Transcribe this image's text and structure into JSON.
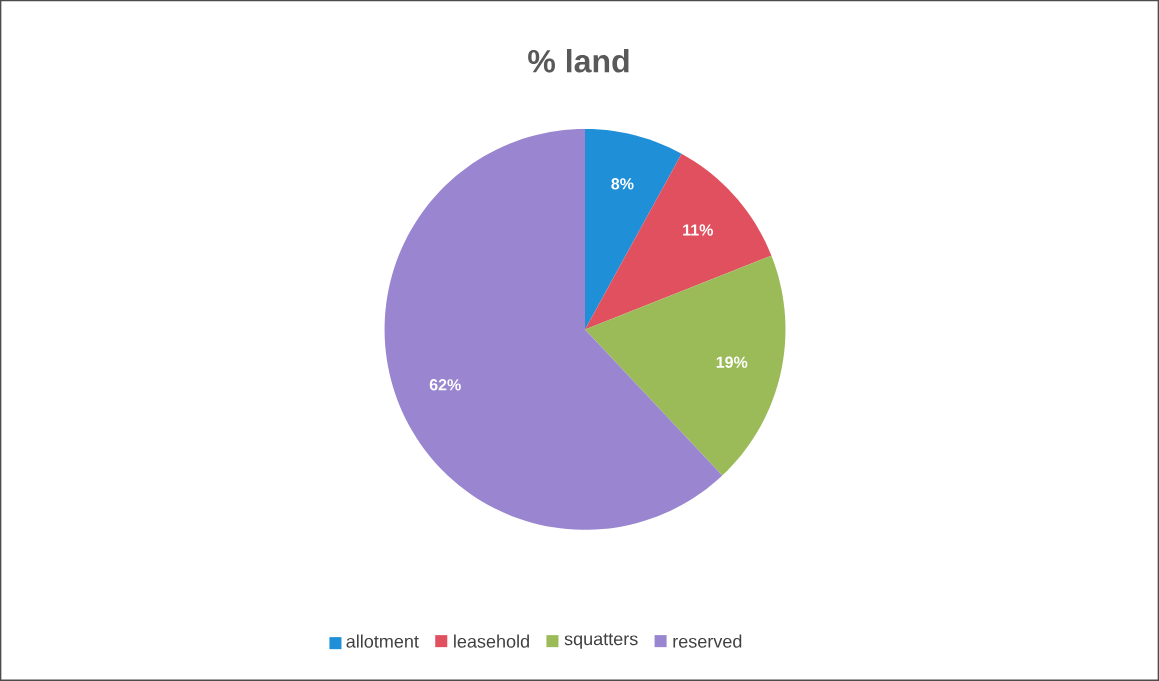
{
  "chart_data": {
    "type": "pie",
    "title": "% land",
    "categories": [
      "allotment",
      "leasehold",
      "squatters",
      "reserved"
    ],
    "values": [
      8,
      11,
      19,
      62
    ],
    "colors": [
      "#1f8fd8",
      "#e0505e",
      "#9bbb59",
      "#9a85d0"
    ],
    "value_labels": [
      "8%",
      "11%",
      "19%",
      "62%"
    ],
    "legend": "bottom"
  }
}
